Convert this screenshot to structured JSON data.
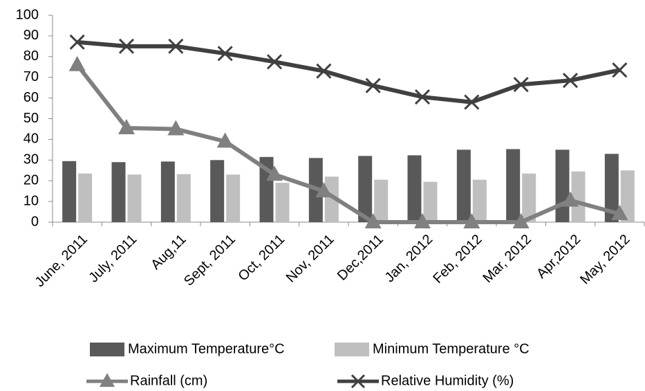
{
  "chart_data": {
    "type": "bar",
    "categories": [
      "June, 2011",
      "July, 2011",
      "Aug,11",
      "Sept, 2011",
      "Oct, 2011",
      "Nov, 2011",
      "Dec,2011",
      "Jan, 2012",
      "Feb, 2012",
      "Mar, 2012",
      "Apr,2012",
      "May, 2012"
    ],
    "series": [
      {
        "name": "Maximum Temperature°C",
        "type": "bar",
        "color": "#595959",
        "values": [
          29.5,
          29,
          29.3,
          30,
          31.5,
          31,
          32,
          32.3,
          35,
          35.3,
          35,
          33
        ]
      },
      {
        "name": "Minimum  Temperature °C",
        "type": "bar",
        "color": "#bfbfbf",
        "values": [
          23.5,
          23,
          23.2,
          23,
          19,
          22,
          20.5,
          19.5,
          20.5,
          23.5,
          24.5,
          25
        ]
      },
      {
        "name": "Rainfall (cm)",
        "type": "line",
        "marker": "triangle",
        "color": "#808080",
        "values": [
          76,
          45.5,
          45,
          39,
          23,
          15,
          0,
          0,
          0,
          0,
          10.5,
          4
        ]
      },
      {
        "name": "Relative Humidity (%)",
        "type": "line",
        "marker": "x",
        "color": "#404040",
        "values": [
          87,
          85,
          85,
          81.5,
          77.5,
          73,
          66,
          60.5,
          58,
          66.5,
          68.5,
          73.5
        ]
      }
    ],
    "ylim": [
      0,
      100
    ],
    "yticks": [
      0,
      10,
      20,
      30,
      40,
      50,
      60,
      70,
      80,
      90,
      100
    ],
    "grid": false,
    "legend": "bottom"
  }
}
